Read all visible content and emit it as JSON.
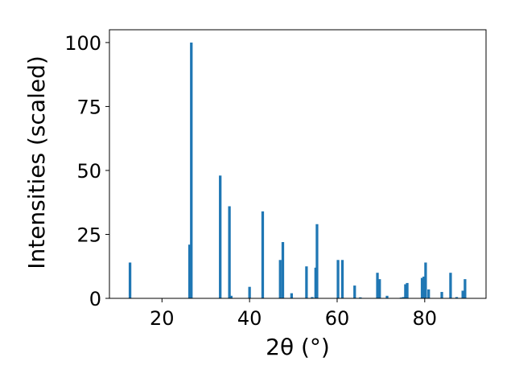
{
  "chart_data": {
    "type": "bar",
    "xlabel": "2θ (°)",
    "ylabel": "Intensities (scaled)",
    "xlim": [
      8,
      94
    ],
    "ylim": [
      0,
      105
    ],
    "xticks": [
      {
        "value": 20,
        "label": "20"
      },
      {
        "value": 40,
        "label": "40"
      },
      {
        "value": 60,
        "label": "60"
      },
      {
        "value": 80,
        "label": "80"
      }
    ],
    "yticks": [
      {
        "value": 0,
        "label": "0"
      },
      {
        "value": 25,
        "label": "25"
      },
      {
        "value": 50,
        "label": "50"
      },
      {
        "value": 75,
        "label": "75"
      },
      {
        "value": 100,
        "label": "100"
      }
    ],
    "bar_width": 0.6,
    "color": "#1f77b4",
    "x": [
      12.7,
      26.3,
      26.7,
      33.3,
      35.4,
      35.8,
      40.0,
      43.0,
      47.0,
      47.6,
      49.6,
      53.0,
      54.3,
      55.1,
      55.4,
      60.2,
      61.2,
      64.0,
      65.3,
      69.2,
      69.7,
      71.4,
      74.6,
      75.1,
      75.6,
      76.0,
      79.4,
      79.8,
      80.2,
      80.9,
      83.9,
      85.9,
      87.3,
      88.7,
      89.2
    ],
    "values": [
      14,
      21,
      100,
      48,
      36,
      1,
      4.5,
      34,
      15,
      22,
      2,
      12.5,
      0.5,
      12,
      29,
      15,
      15,
      5,
      0.4,
      10,
      7.5,
      1,
      0.3,
      0.5,
      5.5,
      6,
      8,
      8.5,
      14,
      3.5,
      2.5,
      10,
      0.5,
      3,
      7.5
    ]
  }
}
